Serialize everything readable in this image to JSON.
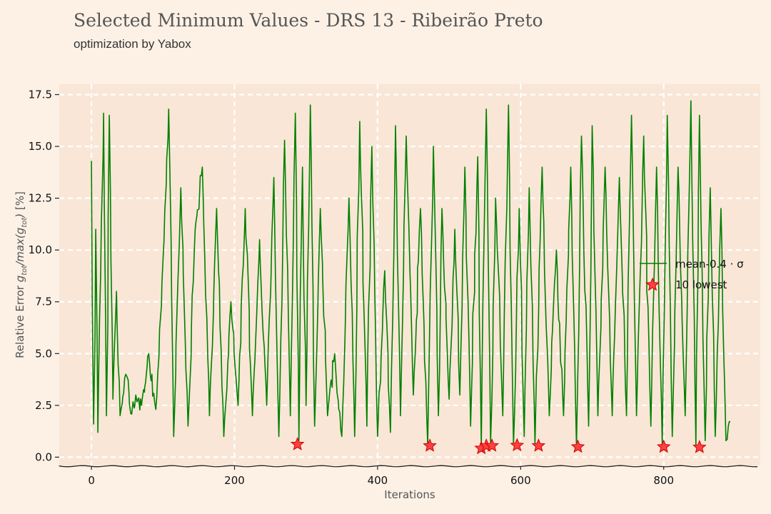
{
  "header": {
    "title": "Selected Minimum Values - DRS 13 - Ribeirão Preto",
    "subtitle": "optimization by Yabox"
  },
  "colors": {
    "background": "#fdf1e6",
    "plot_area": "#f9e6d6",
    "grid": "#ffffff",
    "series": "#008000",
    "marker": "#ff4040",
    "marker_edge": "#cc0000"
  },
  "chart_data": {
    "type": "line",
    "xlabel": "Iterations",
    "ylabel": "Relative Error g_tot/max(g_tot) [%]",
    "xlim": [
      -45,
      935
    ],
    "ylim": [
      -0.4,
      18.0
    ],
    "xticks": [
      0,
      200,
      400,
      600,
      800
    ],
    "yticks": [
      0.0,
      2.5,
      5.0,
      7.5,
      10.0,
      12.5,
      15.0,
      17.5
    ],
    "ytick_labels": [
      "0.0",
      "2.5",
      "5.0",
      "7.5",
      "10.0",
      "12.5",
      "15.0",
      "17.5"
    ],
    "grid": true,
    "legend_position": "center-right",
    "series": [
      {
        "name": "mean-0.4 · σ",
        "kind": "line",
        "x_range": [
          0,
          893
        ],
        "approx_points": [
          [
            0,
            14.3
          ],
          [
            3,
            1.6
          ],
          [
            6,
            11.0
          ],
          [
            9,
            1.2
          ],
          [
            13,
            9.0
          ],
          [
            17,
            16.6
          ],
          [
            21,
            2.0
          ],
          [
            25,
            16.5
          ],
          [
            30,
            2.8
          ],
          [
            35,
            8.0
          ],
          [
            40,
            2.0
          ],
          [
            48,
            4.0
          ],
          [
            55,
            2.1
          ],
          [
            62,
            3.0
          ],
          [
            70,
            2.5
          ],
          [
            80,
            5.0
          ],
          [
            90,
            2.3
          ],
          [
            100,
            9.5
          ],
          [
            108,
            16.8
          ],
          [
            115,
            1.0
          ],
          [
            125,
            13.0
          ],
          [
            135,
            1.5
          ],
          [
            145,
            11.0
          ],
          [
            155,
            14.0
          ],
          [
            165,
            2.0
          ],
          [
            175,
            12.0
          ],
          [
            185,
            1.0
          ],
          [
            195,
            7.5
          ],
          [
            205,
            2.5
          ],
          [
            215,
            12.0
          ],
          [
            225,
            2.0
          ],
          [
            235,
            10.5
          ],
          [
            245,
            2.5
          ],
          [
            255,
            13.5
          ],
          [
            262,
            1.0
          ],
          [
            270,
            15.3
          ],
          [
            278,
            2.0
          ],
          [
            285,
            16.6
          ],
          [
            290,
            0.8
          ],
          [
            295,
            14.0
          ],
          [
            300,
            2.5
          ],
          [
            306,
            17.0
          ],
          [
            312,
            1.5
          ],
          [
            320,
            12.0
          ],
          [
            330,
            2.0
          ],
          [
            340,
            5.0
          ],
          [
            350,
            1.0
          ],
          [
            360,
            12.5
          ],
          [
            368,
            1.0
          ],
          [
            375,
            16.2
          ],
          [
            385,
            1.5
          ],
          [
            392,
            15.0
          ],
          [
            400,
            1.0
          ],
          [
            410,
            9.0
          ],
          [
            418,
            1.2
          ],
          [
            425,
            16.0
          ],
          [
            432,
            2.0
          ],
          [
            440,
            15.5
          ],
          [
            450,
            3.0
          ],
          [
            460,
            12.0
          ],
          [
            470,
            0.6
          ],
          [
            478,
            15.0
          ],
          [
            485,
            2.0
          ],
          [
            490,
            12.0
          ],
          [
            500,
            2.8
          ],
          [
            508,
            11.0
          ],
          [
            515,
            3.0
          ],
          [
            522,
            14.0
          ],
          [
            530,
            1.5
          ],
          [
            540,
            14.5
          ],
          [
            545,
            0.5
          ],
          [
            552,
            16.8
          ],
          [
            558,
            0.7
          ],
          [
            565,
            12.5
          ],
          [
            575,
            2.0
          ],
          [
            583,
            17.0
          ],
          [
            590,
            0.6
          ],
          [
            598,
            12.0
          ],
          [
            605,
            1.0
          ],
          [
            612,
            13.0
          ],
          [
            620,
            0.6
          ],
          [
            630,
            14.0
          ],
          [
            640,
            2.0
          ],
          [
            650,
            10.0
          ],
          [
            660,
            2.0
          ],
          [
            670,
            14.0
          ],
          [
            678,
            0.5
          ],
          [
            685,
            15.5
          ],
          [
            695,
            1.5
          ],
          [
            700,
            16.0
          ],
          [
            708,
            2.0
          ],
          [
            718,
            14.0
          ],
          [
            728,
            2.0
          ],
          [
            738,
            13.5
          ],
          [
            748,
            2.0
          ],
          [
            755,
            16.5
          ],
          [
            762,
            2.0
          ],
          [
            772,
            15.5
          ],
          [
            782,
            1.5
          ],
          [
            790,
            14.0
          ],
          [
            798,
            0.5
          ],
          [
            805,
            16.5
          ],
          [
            812,
            1.0
          ],
          [
            820,
            14.0
          ],
          [
            830,
            2.0
          ],
          [
            838,
            17.2
          ],
          [
            845,
            0.5
          ],
          [
            850,
            16.5
          ],
          [
            858,
            0.8
          ],
          [
            865,
            13.0
          ],
          [
            872,
            1.0
          ],
          [
            880,
            12.0
          ],
          [
            887,
            0.8
          ],
          [
            893,
            1.7
          ]
        ]
      },
      {
        "name": "10 lowest",
        "kind": "scatter",
        "marker": "star",
        "x": [
          288,
          473,
          545,
          552,
          560,
          595,
          625,
          680,
          800,
          850
        ],
        "y": [
          0.62,
          0.55,
          0.43,
          0.55,
          0.55,
          0.57,
          0.55,
          0.5,
          0.5,
          0.48
        ]
      }
    ]
  }
}
